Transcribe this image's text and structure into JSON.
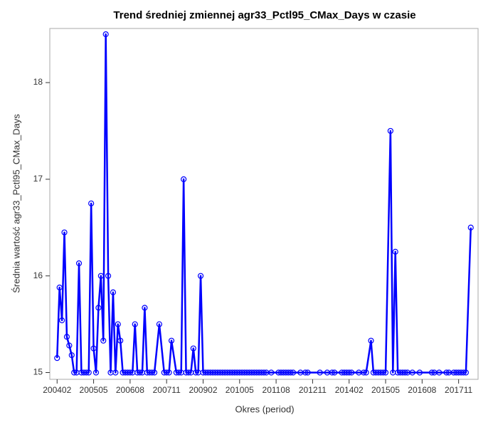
{
  "chart_data": {
    "type": "line",
    "title": "Trend średniej zmiennej agr33_Pctl95_CMax_Days w czasie",
    "x_label": "Okres (period)",
    "y_label": "Średnia wartość agr33_Pctl95_CMax_Days",
    "x": [
      "200402",
      "200403",
      "200404",
      "200405",
      "200406",
      "200407",
      "200408",
      "200409",
      "200410",
      "200411",
      "200412",
      "200501",
      "200502",
      "200503",
      "200504",
      "200505",
      "200506",
      "200507",
      "200508",
      "200509",
      "200510",
      "200511",
      "200512",
      "200601",
      "200602",
      "200603",
      "200604",
      "200605",
      "200606",
      "200607",
      "200608",
      "200609",
      "200610",
      "200611",
      "200612",
      "200701",
      "200702",
      "200703",
      "200704",
      "200705",
      "200706",
      "200708",
      "200710",
      "200711",
      "200712",
      "200801",
      "200803",
      "200804",
      "200805",
      "200806",
      "200807",
      "200808",
      "200809",
      "200810",
      "200811",
      "200812",
      "200901",
      "200902",
      "200903",
      "200904",
      "200905",
      "200906",
      "200907",
      "200908",
      "200909",
      "200910",
      "200911",
      "200912",
      "201001",
      "201002",
      "201003",
      "201004",
      "201005",
      "201006",
      "201007",
      "201008",
      "201009",
      "201010",
      "201011",
      "201012",
      "201101",
      "201102",
      "201103",
      "201104",
      "201106",
      "201109",
      "201110",
      "201111",
      "201112",
      "201201",
      "201202",
      "201203",
      "201206",
      "201208",
      "201209",
      "201302",
      "201305",
      "201307",
      "201308",
      "201311",
      "201312",
      "201401",
      "201402",
      "201403",
      "201406",
      "201408",
      "201409",
      "201411",
      "201412",
      "201501",
      "201502",
      "201503",
      "201504",
      "201505",
      "201507",
      "201508",
      "201509",
      "201510",
      "201511",
      "201512",
      "201601",
      "201602",
      "201604",
      "201607",
      "201612",
      "201701",
      "201703",
      "201706",
      "201707",
      "201709",
      "201710",
      "201711",
      "201712",
      "201801",
      "201802",
      "201804"
    ],
    "series": [
      {
        "name": "agr33_Pctl95_CMax_Days",
        "color": "#0000ff",
        "values": [
          15.15,
          15.88,
          15.54,
          16.45,
          15.37,
          15.28,
          15.18,
          15,
          15,
          16.13,
          15,
          15,
          15,
          15,
          16.75,
          15.25,
          15,
          15.67,
          16,
          15.33,
          18.5,
          16,
          15,
          15.83,
          15,
          15.5,
          15.33,
          15,
          15,
          15,
          15,
          15,
          15.5,
          15,
          15,
          15,
          15.67,
          15,
          15,
          15,
          15,
          15.5,
          15,
          15,
          15,
          15.33,
          15,
          15,
          15,
          17,
          15,
          15,
          15,
          15.25,
          15,
          15,
          16,
          15,
          15,
          15,
          15,
          15,
          15,
          15,
          15,
          15,
          15,
          15,
          15,
          15,
          15,
          15,
          15,
          15,
          15,
          15,
          15,
          15,
          15,
          15,
          15,
          15,
          15,
          15,
          15,
          15,
          15,
          15,
          15,
          15,
          15,
          15,
          15,
          15,
          15,
          15,
          15,
          15,
          15,
          15,
          15,
          15,
          15,
          15,
          15,
          15,
          15,
          15.33,
          15,
          15,
          15,
          15,
          15,
          15,
          17.5,
          15,
          16.25,
          15,
          15,
          15,
          15,
          15,
          15,
          15,
          15,
          15,
          15,
          15,
          15,
          15,
          15,
          15,
          15,
          15,
          15,
          16.5
        ]
      }
    ],
    "xlim": [
      "200311",
      "201807"
    ],
    "xticks": [
      "200402",
      "200505",
      "200608",
      "200711",
      "200902",
      "201005",
      "201108",
      "201211",
      "201402",
      "201505",
      "201608",
      "201711"
    ],
    "ylim": [
      14.93,
      18.56
    ],
    "yticks": [
      15,
      16,
      17,
      18
    ],
    "grid": false
  }
}
